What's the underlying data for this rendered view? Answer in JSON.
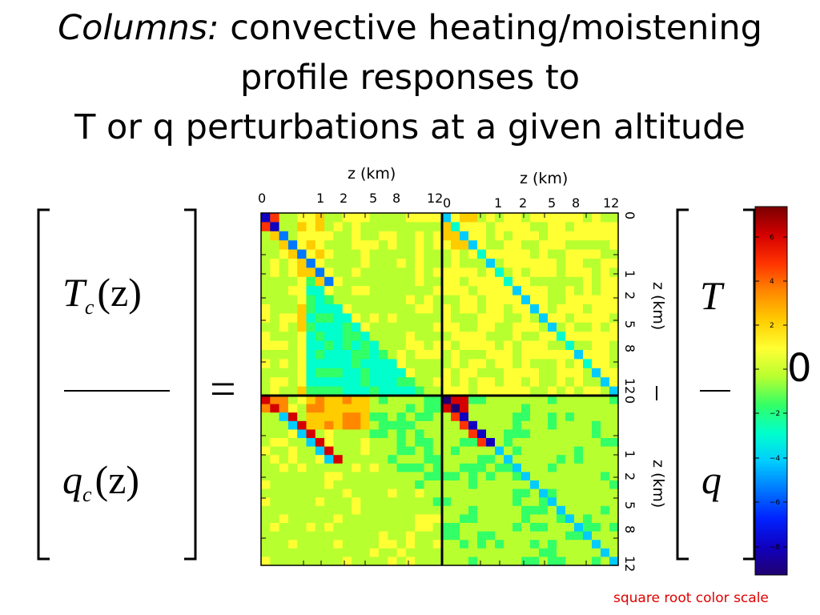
{
  "title": {
    "italic_part": "Columns:",
    "line1_rest": " convective heating/moistening",
    "line2": "profile responses to",
    "line3": "T or q perturbations at a given altitude"
  },
  "equation": {
    "lhs_top": "T",
    "lhs_top_sub": "c",
    "lhs_top_arg": "(z)",
    "lhs_bottom": "q",
    "lhs_bottom_sub": "c",
    "lhs_bottom_arg": "(z)",
    "equals": "=",
    "rhs_top": "T",
    "rhs_bottom": "q"
  },
  "axes": {
    "top_label_left": "z (km)",
    "top_label_right": "z (km)",
    "top_ticks": [
      "0",
      "1",
      "2",
      "5",
      "8",
      "12"
    ],
    "right_label_upper": "z (km)",
    "right_label_lower": "z (km)",
    "right_ticks": [
      "0",
      "1",
      "2",
      "5",
      "8",
      "12"
    ]
  },
  "colorbar": {
    "ticks": [
      "6",
      "4",
      "2",
      "0",
      "−2",
      "−4",
      "−6",
      "−8"
    ],
    "big_zero": "0",
    "note": "square root color scale",
    "colors": [
      "#7a0000",
      "#d40000",
      "#ff3300",
      "#ff8800",
      "#ffcc00",
      "#ffff33",
      "#b8ff30",
      "#33ff66",
      "#00ffcc",
      "#00ccff",
      "#0077ff",
      "#0022ff",
      "#1000c0",
      "#200070"
    ]
  }
}
